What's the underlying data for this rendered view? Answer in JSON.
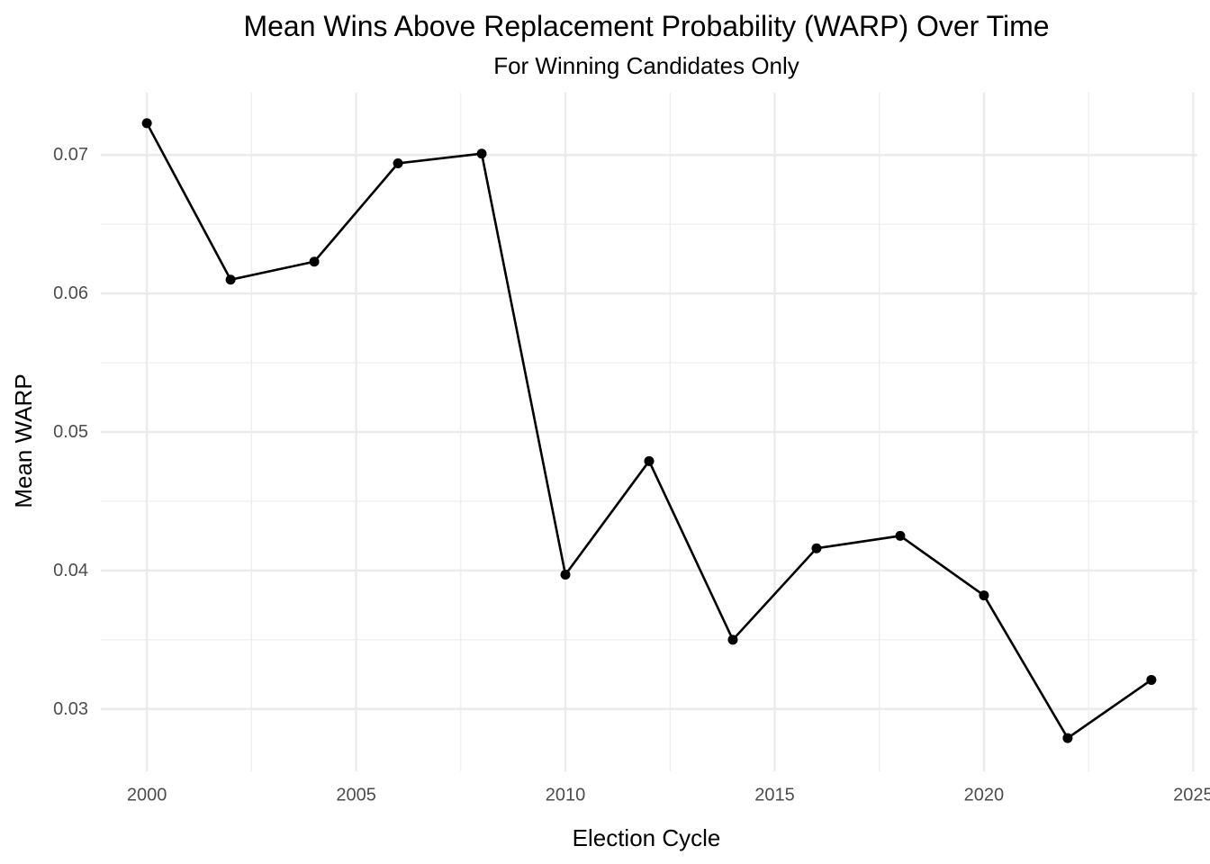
{
  "chart_data": {
    "type": "line",
    "title": "Mean Wins Above Replacement Probability (WARP) Over Time",
    "subtitle": "For Winning Candidates Only",
    "xlabel": "Election Cycle",
    "ylabel": "Mean WARP",
    "xlim": [
      1998.9,
      2025.1
    ],
    "ylim": [
      0.0255,
      0.0745
    ],
    "x_ticks": [
      2000,
      2005,
      2010,
      2015,
      2020,
      2025
    ],
    "x_tick_labels": [
      "2000",
      "2005",
      "2010",
      "2015",
      "2020",
      "2025"
    ],
    "y_ticks": [
      0.03,
      0.04,
      0.05,
      0.06,
      0.07
    ],
    "y_tick_labels": [
      "0.03",
      "0.04",
      "0.05",
      "0.06",
      "0.07"
    ],
    "grid": true,
    "legend": "none",
    "line_color": "#000000",
    "x": [
      2000,
      2002,
      2004,
      2006,
      2008,
      2010,
      2012,
      2014,
      2016,
      2018,
      2020,
      2022,
      2024
    ],
    "y": [
      0.0723,
      0.061,
      0.0623,
      0.0694,
      0.0701,
      0.0397,
      0.0479,
      0.035,
      0.0416,
      0.0425,
      0.0382,
      0.0279,
      0.0321
    ]
  }
}
